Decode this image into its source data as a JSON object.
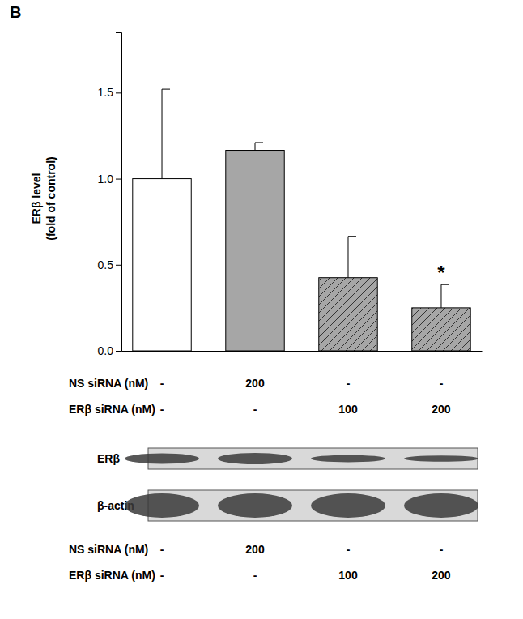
{
  "chart_data": {
    "type": "bar",
    "title": "B",
    "y_label": [
      "ERβ level",
      "(fold of control)"
    ],
    "categories": [
      null,
      null,
      null,
      null
    ],
    "values": [
      1.0,
      1.165,
      0.425,
      0.25
    ],
    "errors": [
      0.52,
      0.045,
      0.24,
      0.135
    ],
    "colors": [
      "#ffffff",
      "#a6a6a6",
      "#a6a6a6",
      "#a6a6a6"
    ],
    "ylim": [
      0,
      1.85
    ],
    "yticks": [
      {
        "value": 0,
        "label": "0.0"
      },
      {
        "value": 0.5,
        "label": "0.5"
      },
      {
        "value": 1,
        "label": "1.0"
      },
      {
        "value": 1.5,
        "label": "1.5"
      }
    ],
    "tick_labels": "y",
    "annotations": [
      {
        "text": "*",
        "index": 3
      }
    ],
    "conditions": [
      {
        "label": "NS siRNA (nM)",
        "values": [
          "-",
          "200",
          "-",
          "-"
        ]
      },
      {
        "label": "ERβ siRNA (nM)",
        "values": [
          "-",
          "-",
          "100",
          "200"
        ]
      }
    ],
    "blot": {
      "bands": [
        "ERβ",
        "β-actin"
      ],
      "conditions": [
        {
          "label": "NS siRNA (nM)",
          "values": [
            "-",
            "200",
            "-",
            "-"
          ]
        },
        {
          "label": "ERβ siRNA (nM)",
          "values": [
            "-",
            "-",
            "100",
            "200"
          ]
        }
      ]
    }
  }
}
